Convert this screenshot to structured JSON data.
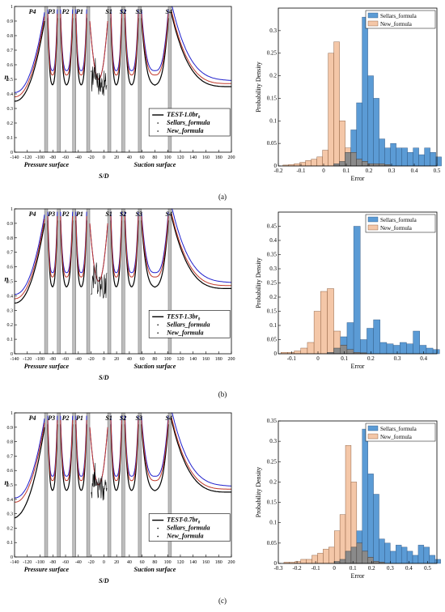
{
  "panels": [
    {
      "label": "(a)",
      "left": {
        "region_labels": [
          "P4",
          "P3",
          "P2",
          "P1",
          "S1",
          "S2",
          "S3",
          "S4"
        ],
        "ylabel": "η",
        "xlabel": "S/D",
        "surface_labels": [
          "Pressure surface",
          "Suction surface"
        ],
        "legend": [
          "TEST-1.0br",
          "Sellars_formula",
          "New_formula"
        ],
        "legend_sub": "0"
      },
      "right": {
        "ylabel": "Probability Density",
        "xlabel": "Error",
        "legend": [
          "Sellars_formula",
          "New_formula"
        ]
      }
    },
    {
      "label": "(b)",
      "left": {
        "region_labels": [
          "P4",
          "P3",
          "P2",
          "P1",
          "S1",
          "S2",
          "S3",
          "S4"
        ],
        "ylabel": "η",
        "xlabel": "S/D",
        "surface_labels": [
          "Pressure surface",
          "Suction surface"
        ],
        "legend": [
          "TEST-1.3br",
          "Sellars_formula",
          "New_formula"
        ],
        "legend_sub": "0"
      },
      "right": {
        "ylabel": "Probability Density",
        "xlabel": "Error",
        "legend": [
          "Sellars_formula",
          "New_formula"
        ]
      }
    },
    {
      "label": "(c)",
      "left": {
        "region_labels": [
          "P4",
          "P3",
          "P2",
          "P1",
          "S1",
          "S2",
          "S3",
          "S4"
        ],
        "ylabel": "η",
        "xlabel": "S/D",
        "surface_labels": [
          "Pressure surface",
          "Suction surface"
        ],
        "legend": [
          "TEST-0.7br",
          "Sellars_formula",
          "New_formula"
        ],
        "legend_sub": "0"
      },
      "right": {
        "ylabel": "Probability Density",
        "xlabel": "Error",
        "legend": [
          "Sellars_formula",
          "New_formula"
        ]
      }
    }
  ],
  "colors": {
    "test": "#000000",
    "sellars": "#1f1fcc",
    "new": "#c0392b",
    "hist_sellars": "#5b9bd5",
    "hist_new": "#f4c7a8",
    "hist_overlap": "#8a8a8a"
  },
  "chart_data": [
    {
      "type": "line",
      "panel": "a-left",
      "xlim": [
        -140,
        200
      ],
      "ylim": [
        0,
        1
      ],
      "xticks": [
        -140,
        -120,
        -100,
        -80,
        -60,
        -40,
        -20,
        0,
        20,
        40,
        60,
        80,
        100,
        120,
        140,
        160,
        180,
        200
      ],
      "yticks": [
        0,
        0.1,
        0.2,
        0.3,
        0.4,
        0.5,
        0.6,
        0.7,
        0.8,
        0.9,
        1
      ],
      "gaps": [
        [
          -93,
          -88
        ],
        [
          -73,
          -68
        ],
        [
          -49,
          -44
        ],
        [
          -27,
          -22
        ],
        [
          6,
          11
        ],
        [
          28,
          33
        ],
        [
          54,
          59
        ],
        [
          101,
          106
        ]
      ]
    },
    {
      "type": "bar",
      "panel": "a-right",
      "xlim": [
        -0.2,
        0.5
      ],
      "ylim": [
        0,
        0.35
      ],
      "xticks": [
        -0.2,
        -0.1,
        0,
        0.1,
        0.2,
        0.3,
        0.4,
        0.5
      ],
      "yticks": [
        0,
        0.05,
        0.1,
        0.15,
        0.2,
        0.25,
        0.3
      ],
      "bin_start": -0.18,
      "bin_width": 0.025,
      "series": [
        {
          "name": "Sellars_formula",
          "values": [
            0,
            0,
            0,
            0,
            0,
            0,
            0,
            0,
            0,
            0.005,
            0.01,
            0.03,
            0.08,
            0.14,
            0.33,
            0.2,
            0.15,
            0.06,
            0.04,
            0.05,
            0.04,
            0.04,
            0.03,
            0.04,
            0.025,
            0.04,
            0.03,
            0.02
          ]
        },
        {
          "name": "New_formula",
          "values": [
            0.002,
            0.003,
            0.005,
            0.008,
            0.012,
            0.015,
            0.02,
            0.035,
            0.25,
            0.275,
            0.1,
            0.04,
            0.03,
            0.015,
            0.01,
            0.005,
            0.005,
            0.005,
            0.003,
            0,
            0,
            0,
            0,
            0,
            0,
            0,
            0,
            0
          ]
        }
      ]
    },
    {
      "type": "line",
      "panel": "b-left",
      "xlim": [
        -140,
        200
      ],
      "ylim": [
        0,
        1
      ],
      "xticks": [
        -140,
        -120,
        -100,
        -80,
        -60,
        -40,
        -20,
        0,
        20,
        40,
        60,
        80,
        100,
        120,
        140,
        160,
        180,
        200
      ],
      "yticks": [
        0,
        0.1,
        0.2,
        0.3,
        0.4,
        0.5,
        0.6,
        0.7,
        0.8,
        0.9,
        1
      ],
      "gaps": [
        [
          -93,
          -88
        ],
        [
          -73,
          -68
        ],
        [
          -49,
          -44
        ],
        [
          -27,
          -22
        ],
        [
          6,
          11
        ],
        [
          28,
          33
        ],
        [
          54,
          59
        ],
        [
          101,
          106
        ]
      ]
    },
    {
      "type": "bar",
      "panel": "b-right",
      "xlim": [
        -0.15,
        0.45
      ],
      "ylim": [
        0,
        0.5
      ],
      "xticks": [
        -0.1,
        0,
        0.1,
        0.2,
        0.3,
        0.4
      ],
      "yticks": [
        0,
        0.05,
        0.1,
        0.15,
        0.2,
        0.25,
        0.3,
        0.35,
        0.4,
        0.45
      ],
      "bin_start": -0.14,
      "bin_width": 0.025,
      "series": [
        {
          "name": "Sellars_formula",
          "values": [
            0,
            0,
            0,
            0,
            0,
            0,
            0,
            0.005,
            0.02,
            0.06,
            0.11,
            0.45,
            0.05,
            0.09,
            0.12,
            0.04,
            0.035,
            0.03,
            0.04,
            0.035,
            0.08,
            0.03,
            0.02,
            0.015
          ]
        },
        {
          "name": "New_formula",
          "values": [
            0.005,
            0.005,
            0.01,
            0.02,
            0.04,
            0.15,
            0.22,
            0.23,
            0.08,
            0.03,
            0.015,
            0.005,
            0.003,
            0,
            0,
            0,
            0,
            0,
            0,
            0,
            0,
            0,
            0,
            0
          ]
        }
      ]
    },
    {
      "type": "line",
      "panel": "c-left",
      "xlim": [
        -140,
        200
      ],
      "ylim": [
        0,
        1
      ],
      "xticks": [
        -140,
        -120,
        -100,
        -80,
        -60,
        -40,
        -20,
        0,
        20,
        40,
        60,
        80,
        100,
        120,
        140,
        160,
        180,
        200
      ],
      "yticks": [
        0,
        0.1,
        0.2,
        0.3,
        0.4,
        0.5,
        0.6,
        0.7,
        0.8,
        0.9,
        1
      ],
      "gaps": [
        [
          -93,
          -88
        ],
        [
          -73,
          -68
        ],
        [
          -49,
          -44
        ],
        [
          -27,
          -22
        ],
        [
          6,
          11
        ],
        [
          28,
          33
        ],
        [
          54,
          59
        ],
        [
          101,
          106
        ]
      ]
    },
    {
      "type": "bar",
      "panel": "c-right",
      "xlim": [
        -0.3,
        0.55
      ],
      "ylim": [
        0,
        0.35
      ],
      "xticks": [
        -0.3,
        -0.2,
        -0.1,
        0,
        0.1,
        0.2,
        0.3,
        0.4,
        0.5
      ],
      "yticks": [
        0,
        0.05,
        0.1,
        0.15,
        0.2,
        0.25,
        0.3,
        0.35
      ],
      "bin_start": -0.27,
      "bin_width": 0.03,
      "series": [
        {
          "name": "Sellars_formula",
          "values": [
            0,
            0,
            0,
            0,
            0,
            0,
            0,
            0,
            0,
            0.005,
            0.01,
            0.03,
            0.04,
            0.08,
            0.33,
            0.22,
            0.17,
            0.06,
            0.05,
            0.03,
            0.045,
            0.04,
            0.03,
            0.02,
            0.045,
            0.04,
            0.02,
            0.01
          ]
        },
        {
          "name": "New_formula",
          "values": [
            0.003,
            0.003,
            0.005,
            0.01,
            0.01,
            0.02,
            0.025,
            0.035,
            0.04,
            0.08,
            0.12,
            0.29,
            0.2,
            0.05,
            0.03,
            0.015,
            0.005,
            0.003,
            0,
            0,
            0,
            0,
            0,
            0,
            0,
            0,
            0,
            0
          ]
        }
      ]
    }
  ]
}
